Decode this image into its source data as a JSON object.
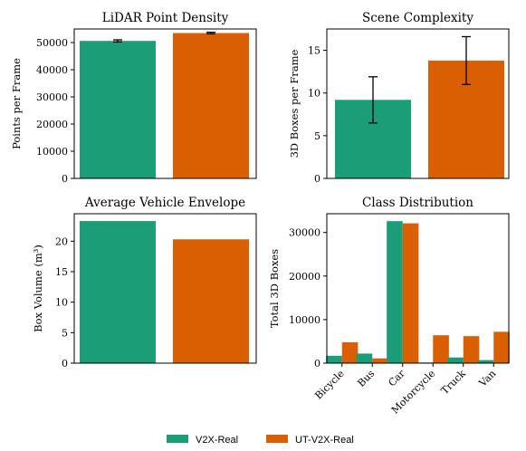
{
  "chart_data": [
    {
      "type": "bar",
      "title": "LiDAR Point Density",
      "xlabel": "",
      "ylabel": "Points per Frame",
      "ylim": [
        0,
        55000
      ],
      "yticks": [
        0,
        10000,
        20000,
        30000,
        40000,
        50000
      ],
      "ytick_labels": [
        "0",
        "10000",
        "20000",
        "30000",
        "40000",
        "50000"
      ],
      "grid": false,
      "categories": [
        "V2X-Real",
        "UT-V2X-Real"
      ],
      "values": [
        50600,
        53500
      ],
      "errors": [
        400,
        300
      ]
    },
    {
      "type": "bar",
      "title": "Scene Complexity",
      "xlabel": "",
      "ylabel": "3D Boxes per Frame",
      "ylim": [
        0,
        17.5
      ],
      "yticks": [
        0,
        5,
        10,
        15
      ],
      "ytick_labels": [
        "0",
        "5",
        "10",
        "15"
      ],
      "grid": false,
      "categories": [
        "V2X-Real",
        "UT-V2X-Real"
      ],
      "values": [
        9.2,
        13.8
      ],
      "errors": [
        2.7,
        2.8
      ]
    },
    {
      "type": "bar",
      "title": "Average Vehicle Envelope",
      "xlabel": "",
      "ylabel": "Box Volume (m³)",
      "ylim": [
        0,
        24.5
      ],
      "yticks": [
        0,
        5,
        10,
        15,
        20
      ],
      "ytick_labels": [
        "0",
        "5",
        "10",
        "15",
        "20"
      ],
      "grid": false,
      "categories": [
        "V2X-Real",
        "UT-V2X-Real"
      ],
      "values": [
        23.3,
        20.3
      ]
    },
    {
      "type": "bar",
      "title": "Class Distribution",
      "xlabel": "",
      "ylabel": "Total 3D Boxes",
      "ylim": [
        0,
        34300
      ],
      "yticks": [
        0,
        10000,
        20000,
        30000
      ],
      "ytick_labels": [
        "0",
        "10000",
        "20000",
        "30000"
      ],
      "grid": false,
      "categories": [
        "Bicycle",
        "Bus",
        "Car",
        "Motorcycle",
        "Truck",
        "Van"
      ],
      "series": [
        {
          "name": "V2X-Real",
          "values": [
            1700,
            2200,
            32600,
            150,
            1300,
            700
          ]
        },
        {
          "name": "UT-V2X-Real",
          "values": [
            4800,
            1100,
            32100,
            6400,
            6200,
            7200
          ]
        }
      ]
    }
  ],
  "legend": {
    "position": "bottom-center",
    "items": [
      {
        "label": "V2X-Real",
        "color": "#1b9e77"
      },
      {
        "label": "UT-V2X-Real",
        "color": "#d95f02"
      }
    ]
  },
  "colors": {
    "series_a": "#1b9e77",
    "series_b": "#d95f02",
    "axis": "#000000",
    "errorbar": "#000000"
  }
}
